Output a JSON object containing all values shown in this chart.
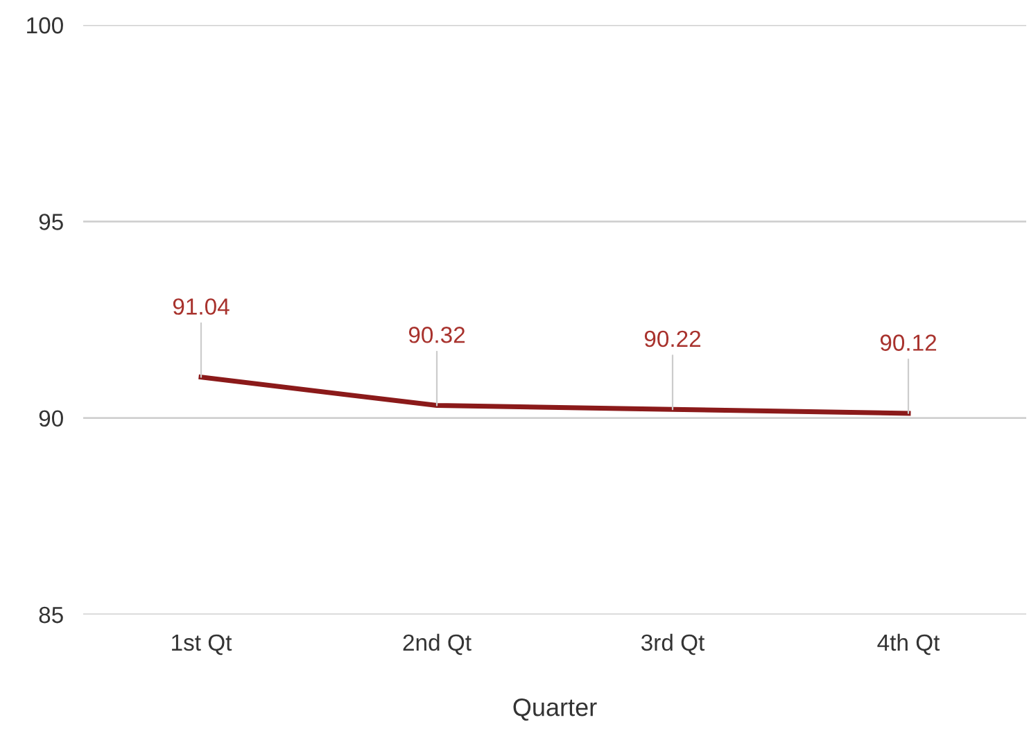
{
  "chart_data": {
    "type": "line",
    "xlabel": "Quarter",
    "categories": [
      "1st Qt",
      "2nd Qt",
      "3rd Qt",
      "4th Qt"
    ],
    "series": [
      {
        "color": "#8b1a1a",
        "values": [
          91.04,
          90.32,
          90.22,
          90.12
        ]
      }
    ],
    "ylim": [
      85,
      100
    ],
    "yticks": [
      85,
      90,
      95,
      100
    ],
    "grid": "y",
    "data_labels": true,
    "marker": "none",
    "line_style": "solid"
  }
}
